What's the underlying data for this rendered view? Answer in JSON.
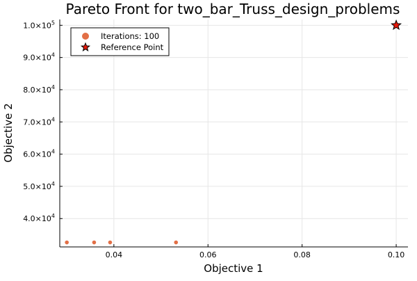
{
  "chart_data": {
    "type": "scatter",
    "title": "Pareto Front for two_bar_Truss_design_problems",
    "xlabel": "Objective 1",
    "ylabel": "Objective 2",
    "xlim": [
      0.0285,
      0.1025
    ],
    "ylim": [
      31200,
      101800
    ],
    "x_ticks": [
      {
        "value": 0.04,
        "label": "0.04"
      },
      {
        "value": 0.06,
        "label": "0.06"
      },
      {
        "value": 0.08,
        "label": "0.08"
      },
      {
        "value": 0.1,
        "label": "0.10"
      }
    ],
    "y_ticks": [
      {
        "value": 40000,
        "mantissa": "4.0×10",
        "exp": "4"
      },
      {
        "value": 50000,
        "mantissa": "5.0×10",
        "exp": "4"
      },
      {
        "value": 60000,
        "mantissa": "6.0×10",
        "exp": "4"
      },
      {
        "value": 70000,
        "mantissa": "7.0×10",
        "exp": "4"
      },
      {
        "value": 80000,
        "mantissa": "8.0×10",
        "exp": "4"
      },
      {
        "value": 90000,
        "mantissa": "9.0×10",
        "exp": "4"
      },
      {
        "value": 100000,
        "mantissa": "1.0×10",
        "exp": "5"
      }
    ],
    "grid": true,
    "legend_position": "top-left",
    "series": [
      {
        "name": "Iterations: 100",
        "marker": "circle",
        "color": "#E26F46",
        "points": [
          {
            "x": 0.03,
            "y": 32600
          },
          {
            "x": 0.0358,
            "y": 32600
          },
          {
            "x": 0.0392,
            "y": 32600
          },
          {
            "x": 0.0532,
            "y": 32600
          }
        ]
      },
      {
        "name": "Reference Point",
        "marker": "star",
        "color": "#E8190B",
        "points": [
          {
            "x": 0.1,
            "y": 100000
          }
        ]
      }
    ]
  }
}
